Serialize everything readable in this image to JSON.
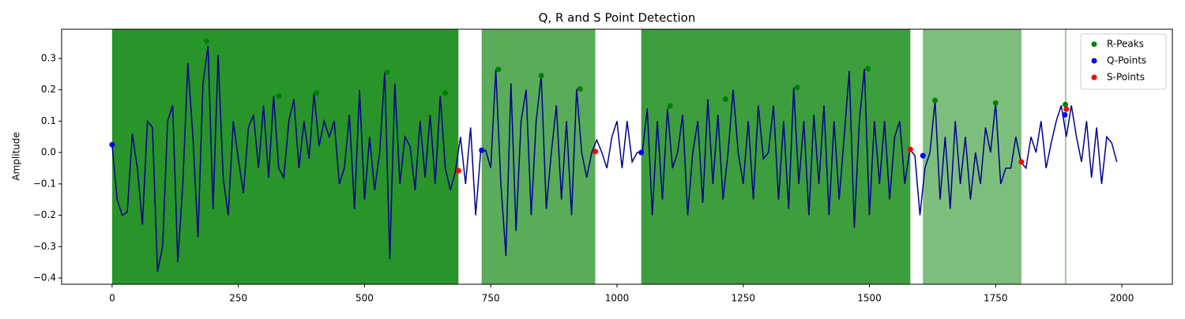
{
  "chart_data": {
    "type": "line",
    "title": "Q, R and S Point Detection",
    "ylabel": "Amplitude",
    "xlim": [
      -100,
      2100
    ],
    "ylim": [
      -0.42,
      0.393
    ],
    "xticks": [
      0,
      250,
      500,
      750,
      1000,
      1250,
      1500,
      1750,
      2000
    ],
    "yticks": [
      {
        "value": -0.4,
        "label": "−0.4"
      },
      {
        "value": -0.3,
        "label": "−0.3"
      },
      {
        "value": -0.2,
        "label": "−0.2"
      },
      {
        "value": -0.1,
        "label": "−0.1"
      },
      {
        "value": 0,
        "label": "0.0"
      },
      0.1,
      0.2,
      0.3
    ],
    "color": "#00008b",
    "x": [
      0,
      10,
      20,
      30,
      40,
      50,
      60,
      70,
      80,
      90,
      100,
      110,
      120,
      130,
      140,
      150,
      160,
      170,
      180,
      190,
      200,
      210,
      220,
      230,
      240,
      250,
      260,
      270,
      280,
      290,
      300,
      310,
      320,
      330,
      340,
      350,
      360,
      370,
      380,
      390,
      400,
      410,
      420,
      430,
      440,
      450,
      460,
      470,
      480,
      490,
      500,
      510,
      520,
      530,
      540,
      550,
      560,
      570,
      580,
      590,
      600,
      610,
      620,
      630,
      640,
      650,
      660,
      670,
      680,
      690,
      700,
      710,
      720,
      730,
      740,
      750,
      760,
      770,
      780,
      790,
      800,
      810,
      820,
      830,
      840,
      850,
      860,
      870,
      880,
      890,
      900,
      910,
      920,
      930,
      940,
      950,
      960,
      970,
      980,
      990,
      1000,
      1010,
      1020,
      1030,
      1040,
      1050,
      1060,
      1070,
      1080,
      1090,
      1100,
      1110,
      1120,
      1130,
      1140,
      1150,
      1160,
      1170,
      1180,
      1190,
      1200,
      1210,
      1220,
      1230,
      1240,
      1250,
      1260,
      1270,
      1280,
      1290,
      1300,
      1310,
      1320,
      1330,
      1340,
      1350,
      1360,
      1370,
      1380,
      1390,
      1400,
      1410,
      1420,
      1430,
      1440,
      1450,
      1460,
      1470,
      1480,
      1490,
      1500,
      1510,
      1520,
      1530,
      1540,
      1550,
      1560,
      1570,
      1580,
      1590,
      1600,
      1610,
      1620,
      1630,
      1640,
      1650,
      1660,
      1670,
      1680,
      1690,
      1700,
      1710,
      1720,
      1730,
      1740,
      1750,
      1760,
      1770,
      1780,
      1790,
      1800,
      1810,
      1820,
      1830,
      1840,
      1850,
      1860,
      1870,
      1880,
      1890,
      1900,
      1910,
      1920,
      1930,
      1940,
      1950,
      1960,
      1970,
      1980,
      1990
    ],
    "values": [
      0.025,
      -0.15,
      -0.2,
      -0.19,
      0.06,
      -0.05,
      -0.23,
      0.1,
      0.08,
      -0.38,
      -0.3,
      0.1,
      0.15,
      -0.35,
      -0.1,
      0.285,
      0.05,
      -0.27,
      0.22,
      0.34,
      -0.18,
      0.31,
      -0.08,
      -0.2,
      0.1,
      -0.02,
      -0.13,
      0.08,
      0.12,
      -0.05,
      0.15,
      -0.08,
      0.18,
      -0.05,
      -0.08,
      0.1,
      0.17,
      -0.05,
      0.1,
      -0.02,
      0.19,
      0.02,
      0.1,
      0.05,
      0.1,
      -0.1,
      -0.05,
      0.12,
      -0.18,
      0.2,
      -0.15,
      0.05,
      -0.12,
      0.0,
      0.256,
      -0.34,
      0.22,
      -0.1,
      0.05,
      0.02,
      -0.12,
      0.1,
      -0.08,
      0.12,
      -0.1,
      0.18,
      -0.05,
      -0.12,
      -0.06,
      0.05,
      -0.1,
      0.08,
      -0.2,
      0.0,
      0.007,
      -0.05,
      0.265,
      -0.1,
      -0.33,
      0.22,
      -0.25,
      0.1,
      0.2,
      -0.2,
      0.1,
      0.245,
      -0.18,
      0.0,
      0.15,
      -0.15,
      0.1,
      -0.2,
      0.203,
      0.0,
      -0.08,
      0.0,
      0.04,
      0.0,
      -0.05,
      0.05,
      0.1,
      -0.05,
      0.1,
      -0.03,
      0.0,
      0.0,
      0.14,
      -0.2,
      0.1,
      -0.15,
      0.14,
      -0.05,
      0.0,
      0.12,
      -0.2,
      0.0,
      0.1,
      -0.16,
      0.17,
      -0.1,
      0.12,
      -0.15,
      0.0,
      0.2,
      0.0,
      -0.1,
      0.1,
      -0.15,
      0.15,
      -0.02,
      0.0,
      0.15,
      -0.15,
      0.1,
      -0.18,
      0.207,
      -0.1,
      0.1,
      -0.2,
      0.12,
      -0.1,
      0.15,
      -0.2,
      0.1,
      -0.15,
      0.05,
      0.26,
      -0.24,
      0.1,
      0.267,
      -0.2,
      0.1,
      -0.1,
      0.1,
      -0.15,
      0.05,
      0.1,
      -0.1,
      0.01,
      -0.01,
      -0.2,
      -0.05,
      0.0,
      0.166,
      -0.15,
      0.05,
      -0.18,
      0.1,
      -0.1,
      0.05,
      -0.15,
      0.0,
      -0.1,
      0.08,
      0.0,
      0.158,
      -0.1,
      -0.05,
      -0.05,
      0.05,
      -0.03,
      -0.05,
      0.05,
      0.0,
      0.1,
      -0.05,
      0.03,
      0.1,
      0.15,
      0.05,
      0.15,
      0.05,
      -0.03,
      0.1,
      -0.08,
      0.08,
      -0.1,
      0.05,
      0.03,
      -0.03
    ],
    "spans": [
      {
        "start": 0,
        "end": 686,
        "color": "green",
        "alpha": 0.84
      },
      {
        "start": 732,
        "end": 957,
        "color": "green",
        "alpha": 0.65
      },
      {
        "start": 1048,
        "end": 1581,
        "color": "green",
        "alpha": 0.76
      },
      {
        "start": 1606,
        "end": 1801,
        "color": "green",
        "alpha": 0.51
      },
      {
        "start": 1887,
        "end": 1890,
        "color": "green",
        "alpha": 0.4
      }
    ],
    "legend": "upper right",
    "series": [
      {
        "name": "R-Peaks",
        "color": "green",
        "x": [
          187,
          330,
          405,
          545,
          660,
          765,
          850,
          927,
          1105,
          1215,
          1357,
          1497,
          1630,
          1750,
          1888
        ],
        "values": [
          0.355,
          0.18,
          0.19,
          0.256,
          0.19,
          0.265,
          0.245,
          0.203,
          0.148,
          0.17,
          0.207,
          0.267,
          0.166,
          0.158,
          0.153
        ]
      },
      {
        "name": "Q-Points",
        "color": "blue",
        "x": [
          0,
          732,
          1048,
          1606,
          1887
        ],
        "values": [
          0.025,
          0.007,
          0.0,
          -0.01,
          0.12
        ]
      },
      {
        "name": "S-Points",
        "color": "red",
        "x": [
          686,
          957,
          1581,
          1801,
          1890
        ],
        "values": [
          -0.058,
          0.003,
          0.01,
          -0.03,
          0.138
        ]
      }
    ]
  }
}
